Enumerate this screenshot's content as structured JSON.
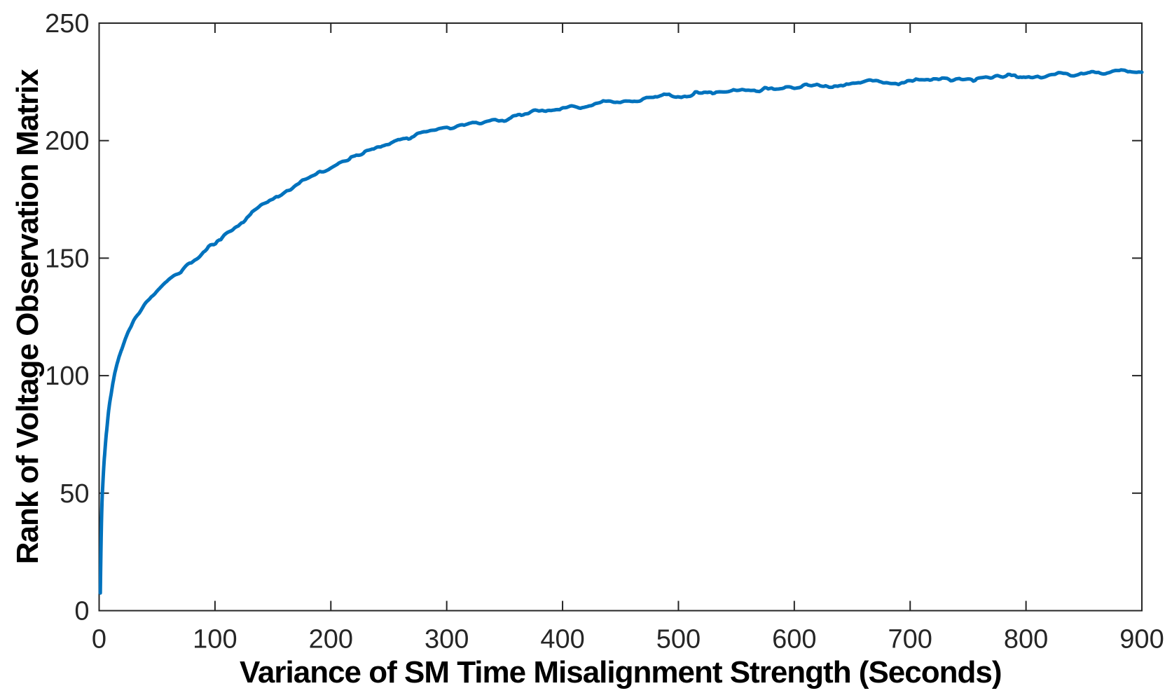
{
  "chart_data": {
    "type": "line",
    "title": "",
    "xlabel": "Variance of SM Time Misalignment Strength (Seconds)",
    "ylabel": "Rank of Voltage Observation Matrix",
    "xlim": [
      0,
      900
    ],
    "ylim": [
      0,
      250
    ],
    "x_ticks": [
      0,
      100,
      200,
      300,
      400,
      500,
      600,
      700,
      800,
      900
    ],
    "y_ticks": [
      0,
      50,
      100,
      150,
      200,
      250
    ],
    "grid": false,
    "box": true,
    "tick_direction": "in",
    "legend_position": "none",
    "colors": {
      "line": "#0072BD",
      "axis": "#262626",
      "tick_text": "#262626",
      "label_text": "#000000",
      "background": "#ffffff"
    },
    "series": [
      {
        "name": "rank-of-voltage-observation-matrix",
        "color": "#0072BD",
        "line_width": 5,
        "noise": {
          "amplitude": 0.85,
          "seed": 7,
          "ramp_in_x": 45,
          "octaves": [
            [
              14,
              0.9
            ],
            [
              5,
              0.7
            ],
            [
              2.5,
              0.45
            ]
          ]
        },
        "points": [
          [
            1,
            7.5
          ],
          [
            1.3,
            18
          ],
          [
            1.6,
            27
          ],
          [
            2,
            37
          ],
          [
            2.5,
            46
          ],
          [
            3,
            52
          ],
          [
            4,
            61
          ],
          [
            5,
            68
          ],
          [
            6,
            74
          ],
          [
            7,
            79
          ],
          [
            8,
            84
          ],
          [
            9,
            88
          ],
          [
            10,
            91
          ],
          [
            12,
            97
          ],
          [
            14,
            102
          ],
          [
            17,
            107.5
          ],
          [
            20,
            112
          ],
          [
            25,
            118
          ],
          [
            30,
            123
          ],
          [
            35,
            127
          ],
          [
            40,
            130.5
          ],
          [
            45,
            133.5
          ],
          [
            50,
            136
          ],
          [
            55,
            138.5
          ],
          [
            60,
            141
          ],
          [
            65,
            143
          ],
          [
            70,
            145
          ],
          [
            75,
            147
          ],
          [
            80,
            149
          ],
          [
            85,
            151
          ],
          [
            90,
            153
          ],
          [
            95,
            155
          ],
          [
            100,
            157
          ],
          [
            110,
            160.5
          ],
          [
            120,
            164.5
          ],
          [
            130,
            168.5
          ],
          [
            140,
            172
          ],
          [
            150,
            175
          ],
          [
            160,
            178
          ],
          [
            170,
            181
          ],
          [
            180,
            184
          ],
          [
            190,
            186.5
          ],
          [
            200,
            189
          ],
          [
            215,
            192
          ],
          [
            230,
            195
          ],
          [
            245,
            197.5
          ],
          [
            260,
            200
          ],
          [
            280,
            202.5
          ],
          [
            300,
            205
          ],
          [
            320,
            207
          ],
          [
            340,
            208.5
          ],
          [
            360,
            210.5
          ],
          [
            380,
            212.5
          ],
          [
            400,
            214
          ],
          [
            420,
            215.2
          ],
          [
            440,
            216.2
          ],
          [
            460,
            217.2
          ],
          [
            480,
            218.2
          ],
          [
            500,
            219.2
          ],
          [
            520,
            220
          ],
          [
            540,
            220.6
          ],
          [
            560,
            221.2
          ],
          [
            580,
            221.8
          ],
          [
            600,
            222.4
          ],
          [
            620,
            223.2
          ],
          [
            640,
            223.8
          ],
          [
            660,
            224.3
          ],
          [
            680,
            224.8
          ],
          [
            700,
            225.3
          ],
          [
            720,
            225.7
          ],
          [
            740,
            226.1
          ],
          [
            760,
            226.5
          ],
          [
            780,
            226.9
          ],
          [
            800,
            227.4
          ],
          [
            820,
            227.9
          ],
          [
            840,
            228.3
          ],
          [
            860,
            228.8
          ],
          [
            880,
            229.3
          ],
          [
            900,
            229.8
          ]
        ]
      }
    ]
  }
}
